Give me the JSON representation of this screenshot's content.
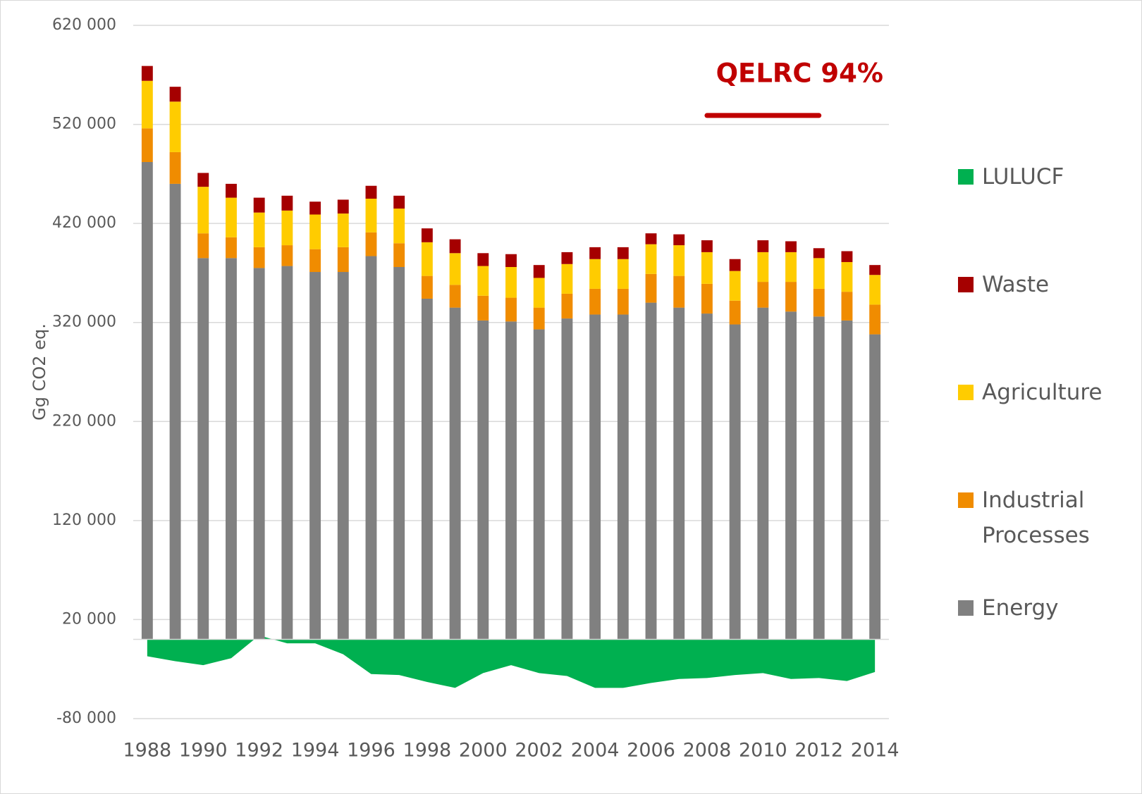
{
  "chart_data": {
    "type": "bar",
    "stacked": true,
    "y_label": "Gg CO2 eq.",
    "categories": [
      "1988",
      null,
      "1990",
      null,
      "1992",
      null,
      "1994",
      null,
      "1996",
      null,
      "1998",
      null,
      "2000",
      null,
      "2002",
      null,
      "2004",
      null,
      "2006",
      null,
      "2008",
      null,
      "2010",
      null,
      "2012",
      null,
      "2014"
    ],
    "series": [
      {
        "name": "Energy",
        "color": "#808080",
        "type": "bar",
        "values": [
          482000,
          460000,
          385000,
          385000,
          375000,
          377000,
          371000,
          371000,
          387000,
          376000,
          344000,
          335000,
          322000,
          321000,
          313000,
          324000,
          328000,
          328000,
          340000,
          335000,
          329000,
          318000,
          335000,
          331000,
          326000,
          322000,
          308000
        ]
      },
      {
        "name": "Industrial Processes",
        "color": "#f08c00",
        "type": "bar",
        "values": [
          34000,
          32000,
          25000,
          21000,
          21000,
          21000,
          23000,
          25000,
          24000,
          24000,
          23000,
          23000,
          25000,
          24000,
          22000,
          25000,
          26000,
          26000,
          29000,
          32000,
          30000,
          24000,
          26000,
          30000,
          28000,
          29000,
          30000
        ]
      },
      {
        "name": "Agriculture",
        "color": "#ffcc00",
        "type": "bar",
        "values": [
          48000,
          51000,
          47000,
          40000,
          35000,
          35000,
          35000,
          34000,
          34000,
          35000,
          34000,
          32000,
          30000,
          31000,
          30000,
          30000,
          30000,
          30000,
          30000,
          31000,
          32000,
          30000,
          30000,
          30000,
          31000,
          30000,
          30000
        ]
      },
      {
        "name": "Waste",
        "color": "#a50000",
        "type": "bar",
        "values": [
          15000,
          15000,
          14000,
          14000,
          15000,
          15000,
          13000,
          14000,
          13000,
          13000,
          14000,
          14000,
          13000,
          13000,
          13000,
          12000,
          12000,
          12000,
          11000,
          11000,
          12000,
          12000,
          12000,
          11000,
          10000,
          11000,
          10000
        ]
      },
      {
        "name": "LULUCF",
        "color": "#00b050",
        "type": "area",
        "values": [
          -17000,
          -22000,
          -26000,
          -19000,
          4000,
          -4000,
          -4000,
          -15000,
          -35000,
          -36000,
          -43000,
          -49000,
          -34000,
          -26000,
          -34000,
          -37000,
          -49000,
          -49000,
          -44000,
          -40000,
          -39000,
          -36000,
          -34000,
          -40000,
          -39000,
          -42000,
          -33000
        ]
      }
    ],
    "annotation": {
      "text": "QELRC 94%",
      "value": 529000,
      "color": "#c00000",
      "x_start": 20,
      "x_end": 24
    },
    "ylim": [
      -80000,
      620000
    ],
    "yticks": [
      {
        "value": -80000,
        "label": "-80 000"
      },
      {
        "value": 20000,
        "label": "20 000"
      },
      {
        "value": 120000,
        "label": "120 000"
      },
      {
        "value": 220000,
        "label": "220 000"
      },
      {
        "value": 320000,
        "label": "320 000"
      },
      {
        "value": 420000,
        "label": "420 000"
      },
      {
        "value": 520000,
        "label": "520 000"
      },
      {
        "value": 620000,
        "label": "620 000"
      }
    ],
    "grid": true,
    "legend": "right"
  }
}
